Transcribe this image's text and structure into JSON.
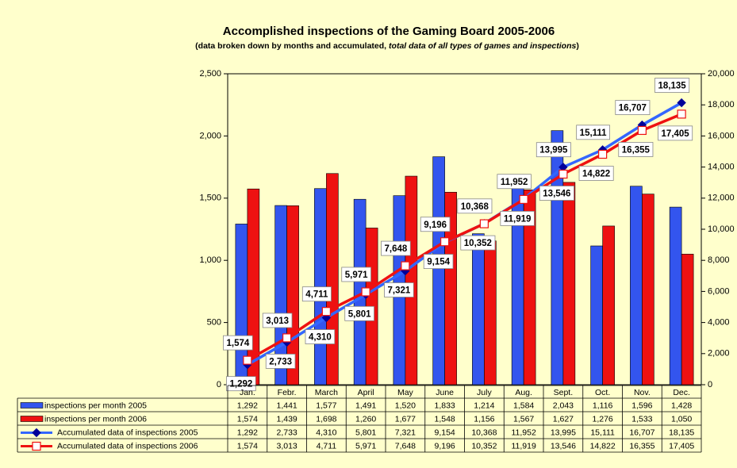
{
  "chart_data": {
    "type": "bar-line",
    "title": "Accomplished inspections of the Gaming Board 2005-2006",
    "subtitle": "(data broken down by months and accumulated,",
    "subtitle_italic": "total data of all types of games and inspections",
    "subtitle_end": ")",
    "categories": [
      "Jan.",
      "Febr.",
      "March",
      "April",
      "May",
      "June",
      "July",
      "Aug.",
      "Sept.",
      "Oct.",
      "Nov.",
      "Dec."
    ],
    "ylim": [
      0,
      2500
    ],
    "yticks": [
      0,
      500,
      {
        "value": 1000,
        "label": "1,000"
      },
      {
        "value": 1500,
        "label": "1,500"
      },
      {
        "value": 2000,
        "label": "2,000"
      },
      {
        "value": 2500,
        "label": "2,500"
      }
    ],
    "y2lim": [
      0,
      20000
    ],
    "y2ticks": [
      0,
      {
        "value": 2000,
        "label": "2,000"
      },
      {
        "value": 4000,
        "label": "4,000"
      },
      {
        "value": 6000,
        "label": "6,000"
      },
      {
        "value": 8000,
        "label": "8,000"
      },
      {
        "value": 10000,
        "label": "10,000"
      },
      {
        "value": 12000,
        "label": "12,000"
      },
      {
        "value": 14000,
        "label": "14,000"
      },
      {
        "value": 16000,
        "label": "16,000"
      },
      {
        "value": 18000,
        "label": "18,000"
      },
      {
        "value": 20000,
        "label": "20,000"
      }
    ],
    "series": [
      {
        "name": "inspections per month  2005",
        "kind": "bar",
        "color": "#3355ee",
        "values": [
          1292,
          1441,
          1577,
          1491,
          1520,
          1833,
          1214,
          1584,
          2043,
          1116,
          1596,
          1428
        ],
        "value_labels": [
          "1,292",
          "1,441",
          "1,577",
          "1,491",
          "1,520",
          "1,833",
          "1,214",
          "1,584",
          "2,043",
          "1,116",
          "1,596",
          "1,428"
        ]
      },
      {
        "name": "inspections per month  2006",
        "kind": "bar",
        "color": "#ee1111",
        "values": [
          1574,
          1439,
          1698,
          1260,
          1677,
          1548,
          1156,
          1567,
          1627,
          1276,
          1533,
          1050
        ],
        "value_labels": [
          "1,574",
          "1,439",
          "1,698",
          "1,260",
          "1,677",
          "1,548",
          "1,156",
          "1,567",
          "1,627",
          "1,276",
          "1,533",
          "1,050"
        ]
      },
      {
        "name": "Accumulated data of inspections 2005",
        "kind": "line",
        "axis": "y2",
        "color": "#3366ff",
        "label_color": "#3366ff",
        "values": [
          1292,
          2733,
          4310,
          5801,
          7321,
          9154,
          10368,
          11952,
          13995,
          15111,
          16707,
          18135
        ],
        "value_labels": [
          "1,292",
          "2,733",
          "4,310",
          "5,801",
          "7,321",
          "9,154",
          "10,368",
          "11,952",
          "13,995",
          "15,111",
          "16,707",
          "18,135"
        ]
      },
      {
        "name": "Accumulated data of inspections 2006",
        "kind": "line",
        "axis": "y2",
        "color": "#ee1111",
        "label_color": "#ee1111",
        "values": [
          1574,
          3013,
          4711,
          5971,
          7648,
          9196,
          10352,
          11919,
          13546,
          14822,
          16355,
          17405
        ],
        "value_labels": [
          "1,574",
          "3,013",
          "4,711",
          "5,971",
          "7,648",
          "9,196",
          "10,352",
          "11,919",
          "13,546",
          "14,822",
          "16,355",
          "17,405"
        ]
      }
    ]
  }
}
